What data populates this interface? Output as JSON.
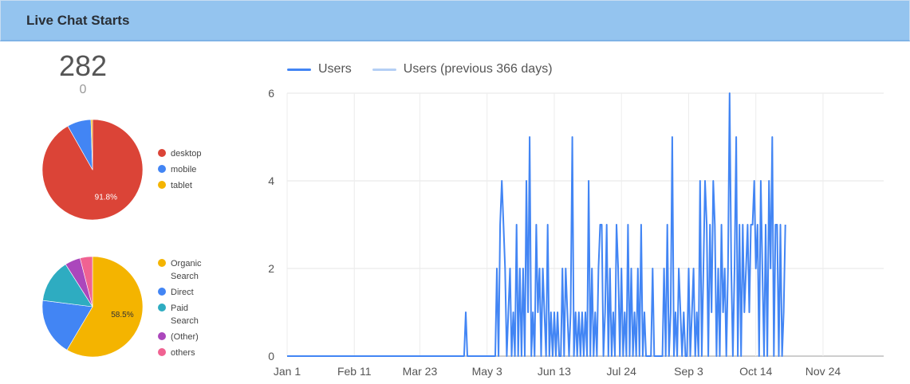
{
  "header": {
    "title": "Live Chat Starts"
  },
  "scorecard": {
    "value": "282",
    "comparison": "0"
  },
  "colors": {
    "header_bg": "#94c4ef",
    "users": "#4285f4",
    "users_prev": "#b4cff5",
    "desktop": "#db4437",
    "mobile": "#4285f4",
    "tablet": "#f4b400",
    "organic": "#f4b400",
    "direct": "#4285f4",
    "paid": "#2eacc1",
    "other": "#ab47bc",
    "others": "#f06292"
  },
  "chart_data": [
    {
      "type": "pie",
      "labels": [
        "desktop",
        "mobile",
        "tablet"
      ],
      "values": [
        91.8,
        7.7,
        0.5
      ],
      "colors": [
        "#db4437",
        "#4285f4",
        "#f4b400"
      ],
      "data_labels": [
        "91.8%",
        "",
        ""
      ],
      "legend": "right"
    },
    {
      "type": "pie",
      "labels": [
        "Organic\nSearch",
        "Direct",
        "Paid\nSearch",
        "(Other)",
        "others"
      ],
      "values": [
        58.5,
        18.5,
        14.0,
        5.0,
        4.0
      ],
      "colors": [
        "#f4b400",
        "#4285f4",
        "#2eacc1",
        "#ab47bc",
        "#f06292"
      ],
      "data_labels": [
        "58.5%",
        "",
        "",
        "",
        ""
      ],
      "legend": "right"
    },
    {
      "type": "line",
      "series": [
        {
          "name": "Users",
          "color": "#4285f4"
        },
        {
          "name": "Users (previous 366 days)",
          "color": "#b4cff5"
        }
      ],
      "x_ticks": [
        "Jan 1",
        "Feb 11",
        "Mar 23",
        "May 3",
        "Jun 13",
        "Jul 24",
        "Sep 3",
        "Oct 14",
        "Nov 24"
      ],
      "y_ticks": [
        "0",
        "2",
        "4",
        "6"
      ],
      "ylim": [
        0,
        6
      ],
      "xlim": [
        "Jan 1",
        "Dec 31"
      ],
      "grid": true,
      "legend": "top-left",
      "points": [
        [
          "Jan 1",
          0
        ],
        [
          "Apr 19",
          0
        ],
        [
          "Apr 20",
          1
        ],
        [
          "Apr 21",
          0
        ],
        [
          "May 8",
          0
        ],
        [
          "May 9",
          2
        ],
        [
          "May 10",
          0
        ],
        [
          "May 11",
          3
        ],
        [
          "May 12",
          4
        ],
        [
          "May 13",
          3
        ],
        [
          "May 14",
          2
        ],
        [
          "May 15",
          0
        ],
        [
          "May 16",
          1
        ],
        [
          "May 17",
          2
        ],
        [
          "May 18",
          0
        ],
        [
          "May 19",
          1
        ],
        [
          "May 20",
          0
        ],
        [
          "May 21",
          3
        ],
        [
          "May 22",
          0
        ],
        [
          "May 23",
          2
        ],
        [
          "May 24",
          0
        ],
        [
          "May 25",
          2
        ],
        [
          "May 26",
          0
        ],
        [
          "May 27",
          4
        ],
        [
          "May 28",
          1
        ],
        [
          "May 29",
          5
        ],
        [
          "May 30",
          0
        ],
        [
          "May 31",
          1
        ],
        [
          "Jun 1",
          0
        ],
        [
          "Jun 2",
          3
        ],
        [
          "Jun 3",
          1
        ],
        [
          "Jun 4",
          2
        ],
        [
          "Jun 5",
          0
        ],
        [
          "Jun 6",
          2
        ],
        [
          "Jun 7",
          1
        ],
        [
          "Jun 8",
          0
        ],
        [
          "Jun 9",
          3
        ],
        [
          "Jun 10",
          0
        ],
        [
          "Jun 11",
          1
        ],
        [
          "Jun 12",
          0
        ],
        [
          "Jun 13",
          1
        ],
        [
          "Jun 14",
          0
        ],
        [
          "Jun 15",
          1
        ],
        [
          "Jun 16",
          0
        ],
        [
          "Jun 17",
          0
        ],
        [
          "Jun 18",
          2
        ],
        [
          "Jun 19",
          0
        ],
        [
          "Jun 20",
          2
        ],
        [
          "Jun 21",
          1
        ],
        [
          "Jun 22",
          0
        ],
        [
          "Jun 23",
          1
        ],
        [
          "Jun 24",
          5
        ],
        [
          "Jun 25",
          0
        ],
        [
          "Jun 26",
          1
        ],
        [
          "Jun 27",
          0
        ],
        [
          "Jun 28",
          1
        ],
        [
          "Jun 29",
          0
        ],
        [
          "Jun 30",
          1
        ],
        [
          "Jul 1",
          0
        ],
        [
          "Jul 2",
          1
        ],
        [
          "Jul 3",
          0
        ],
        [
          "Jul 4",
          4
        ],
        [
          "Jul 5",
          0
        ],
        [
          "Jul 6",
          2
        ],
        [
          "Jul 7",
          0
        ],
        [
          "Jul 8",
          1
        ],
        [
          "Jul 9",
          0
        ],
        [
          "Jul 10",
          2
        ],
        [
          "Jul 11",
          3
        ],
        [
          "Jul 12",
          3
        ],
        [
          "Jul 13",
          0
        ],
        [
          "Jul 14",
          1
        ],
        [
          "Jul 15",
          3
        ],
        [
          "Jul 16",
          0
        ],
        [
          "Jul 17",
          2
        ],
        [
          "Jul 18",
          0
        ],
        [
          "Jul 19",
          1
        ],
        [
          "Jul 20",
          0
        ],
        [
          "Jul 21",
          3
        ],
        [
          "Jul 22",
          2
        ],
        [
          "Jul 23",
          0
        ],
        [
          "Jul 24",
          2
        ],
        [
          "Jul 25",
          0
        ],
        [
          "Jul 26",
          1
        ],
        [
          "Jul 27",
          0
        ],
        [
          "Jul 28",
          3
        ],
        [
          "Jul 29",
          0
        ],
        [
          "Jul 30",
          2
        ],
        [
          "Jul 31",
          0
        ],
        [
          "Aug 1",
          1
        ],
        [
          "Aug 2",
          0
        ],
        [
          "Aug 3",
          2
        ],
        [
          "Aug 4",
          0
        ],
        [
          "Aug 5",
          3
        ],
        [
          "Aug 6",
          0
        ],
        [
          "Aug 7",
          1
        ],
        [
          "Aug 8",
          0
        ],
        [
          "Aug 9",
          0
        ],
        [
          "Aug 10",
          0
        ],
        [
          "Aug 11",
          0
        ],
        [
          "Aug 12",
          2
        ],
        [
          "Aug 13",
          0
        ],
        [
          "Aug 14",
          0
        ],
        [
          "Aug 15",
          0
        ],
        [
          "Aug 16",
          0
        ],
        [
          "Aug 17",
          0
        ],
        [
          "Aug 18",
          0
        ],
        [
          "Aug 19",
          2
        ],
        [
          "Aug 20",
          0
        ],
        [
          "Aug 21",
          3
        ],
        [
          "Aug 22",
          0
        ],
        [
          "Aug 23",
          1
        ],
        [
          "Aug 24",
          5
        ],
        [
          "Aug 25",
          0
        ],
        [
          "Aug 26",
          1
        ],
        [
          "Aug 27",
          0
        ],
        [
          "Aug 28",
          2
        ],
        [
          "Aug 29",
          1
        ],
        [
          "Aug 30",
          0
        ],
        [
          "Aug 31",
          1
        ],
        [
          "Sep 1",
          0
        ],
        [
          "Sep 2",
          0
        ],
        [
          "Sep 3",
          2
        ],
        [
          "Sep 4",
          0
        ],
        [
          "Sep 5",
          1
        ],
        [
          "Sep 6",
          2
        ],
        [
          "Sep 7",
          0
        ],
        [
          "Sep 8",
          1
        ],
        [
          "Sep 9",
          0
        ],
        [
          "Sep 10",
          4
        ],
        [
          "Sep 11",
          0
        ],
        [
          "Sep 12",
          2
        ],
        [
          "Sep 13",
          4
        ],
        [
          "Sep 14",
          3
        ],
        [
          "Sep 15",
          0
        ],
        [
          "Sep 16",
          3
        ],
        [
          "Sep 17",
          1
        ],
        [
          "Sep 18",
          4
        ],
        [
          "Sep 19",
          3
        ],
        [
          "Sep 20",
          0
        ],
        [
          "Sep 21",
          2
        ],
        [
          "Sep 22",
          0
        ],
        [
          "Sep 23",
          3
        ],
        [
          "Sep 24",
          1
        ],
        [
          "Sep 25",
          2
        ],
        [
          "Sep 26",
          0
        ],
        [
          "Sep 27",
          2
        ],
        [
          "Sep 28",
          6
        ],
        [
          "Sep 29",
          2
        ],
        [
          "Sep 30",
          0
        ],
        [
          "Oct 1",
          2
        ],
        [
          "Oct 2",
          5
        ],
        [
          "Oct 3",
          0
        ],
        [
          "Oct 4",
          3
        ],
        [
          "Oct 5",
          0
        ],
        [
          "Oct 6",
          3
        ],
        [
          "Oct 7",
          1
        ],
        [
          "Oct 8",
          2
        ],
        [
          "Oct 9",
          3
        ],
        [
          "Oct 10",
          1
        ],
        [
          "Oct 11",
          3
        ],
        [
          "Oct 12",
          3
        ],
        [
          "Oct 13",
          4
        ],
        [
          "Oct 14",
          2
        ],
        [
          "Oct 15",
          3
        ],
        [
          "Oct 16",
          0
        ],
        [
          "Oct 17",
          4
        ],
        [
          "Oct 18",
          2
        ],
        [
          "Oct 19",
          0
        ],
        [
          "Oct 20",
          3
        ],
        [
          "Oct 21",
          0
        ],
        [
          "Oct 22",
          4
        ],
        [
          "Oct 23",
          2
        ],
        [
          "Oct 24",
          5
        ],
        [
          "Oct 25",
          0
        ],
        [
          "Oct 26",
          3
        ],
        [
          "Oct 27",
          3
        ],
        [
          "Oct 28",
          0
        ],
        [
          "Oct 29",
          3
        ],
        [
          "Oct 30",
          0
        ],
        [
          "Oct 31",
          1
        ],
        [
          "Nov 1",
          3
        ]
      ]
    }
  ]
}
